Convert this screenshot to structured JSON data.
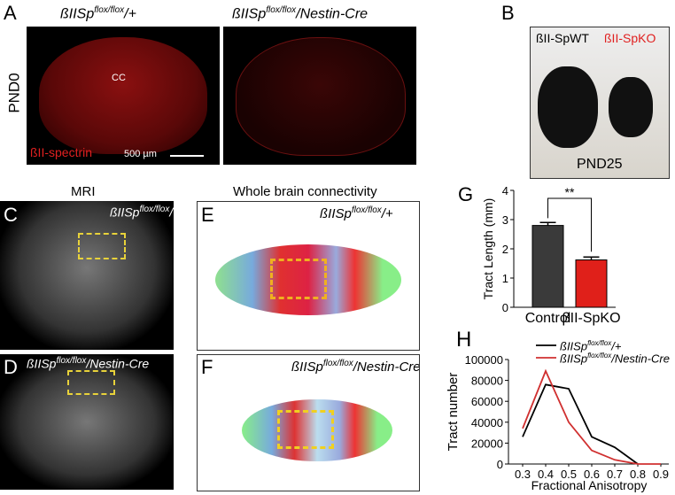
{
  "panel_labels": {
    "A": "A",
    "B": "B",
    "C": "C",
    "D": "D",
    "E": "E",
    "F": "F",
    "G": "G",
    "H": "H"
  },
  "panelA": {
    "title_left": {
      "base": "ßIISp",
      "sup": "flox/flox",
      "suffix": "/+"
    },
    "title_right": {
      "base": "ßIISp",
      "sup": "flox/flox",
      "suffix": "/Nestin-Cre"
    },
    "row_label": "PND0",
    "cc_label": "CC",
    "stain_label": "ßII-spectrin",
    "scale_bar": "500 µm",
    "stain_color": "#e02020"
  },
  "panelB": {
    "label_wt": "ßII-SpWT",
    "label_ko": "ßII-SpKO",
    "age": "PND25",
    "ko_color": "#e02020"
  },
  "panelC": {
    "column_title": "MRI",
    "genotype": {
      "base": "ßIISp",
      "sup": "flox/flox",
      "suffix": "/+"
    }
  },
  "panelD": {
    "genotype": {
      "base": "ßIISp",
      "sup": "flox/flox",
      "suffix": "/Nestin-Cre"
    }
  },
  "panelE": {
    "column_title": "Whole brain connectivity",
    "genotype": {
      "base": "ßIISp",
      "sup": "flox/flox",
      "suffix": "/+"
    }
  },
  "panelF": {
    "genotype": {
      "base": "ßIISp",
      "sup": "flox/flox",
      "suffix": "/Nestin-Cre"
    }
  },
  "chart_data": [
    {
      "type": "bar",
      "panel": "G",
      "categories": [
        "Control",
        "βII-SpKO"
      ],
      "values": [
        2.8,
        1.62
      ],
      "errors": [
        0.1,
        0.1
      ],
      "colors": [
        "#3a3a3a",
        "#e0201a"
      ],
      "ylabel": "Tract Length (mm)",
      "ylim": [
        0,
        4
      ],
      "yticks": [
        "0",
        "1",
        "2",
        "3",
        "4"
      ],
      "significance": "**"
    },
    {
      "type": "line",
      "panel": "H",
      "x": [
        0.3,
        0.4,
        0.5,
        0.6,
        0.7,
        0.8,
        0.9
      ],
      "xticks": [
        "0.3",
        "0.4",
        "0.5",
        "0.6",
        "0.7",
        "0.8",
        "0.9"
      ],
      "yticks": [
        "0",
        "20000",
        "40000",
        "60000",
        "80000",
        "100000"
      ],
      "ylim": [
        0,
        100000
      ],
      "xlabel": "Fractional Anisotropy",
      "ylabel": "Tract  number",
      "legend_placement": "top-right",
      "series": [
        {
          "name": {
            "base": "ßIISp",
            "sup": "flox/flox",
            "suffix": "/+"
          },
          "color": "#000000",
          "values": [
            26000,
            76000,
            72000,
            26000,
            16000,
            0,
            null
          ]
        },
        {
          "name": {
            "base": "ßIISp",
            "sup": "flox/flox",
            "suffix": "/Nestin-Cre"
          },
          "color": "#d03030",
          "values": [
            34000,
            89000,
            40000,
            13000,
            4000,
            0,
            0
          ]
        }
      ]
    }
  ]
}
